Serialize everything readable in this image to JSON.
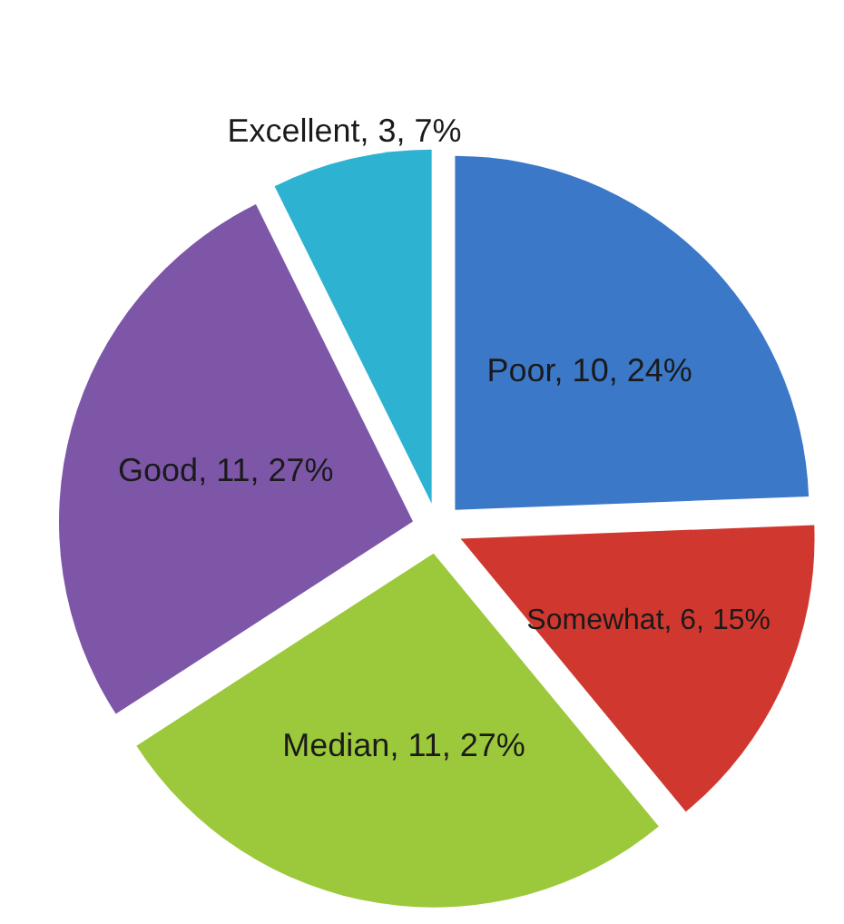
{
  "chart_data": {
    "type": "pie",
    "categories": [
      "Poor",
      "Somewhat",
      "Median",
      "Good",
      "Excellent"
    ],
    "values": [
      10,
      6,
      11,
      11,
      3
    ],
    "colors": [
      "#3c78c8",
      "#d0382f",
      "#9cc83c",
      "#7d56a8",
      "#2eb2d2"
    ],
    "value_labels": [
      "10, 24%",
      "6, 15%",
      "11, 27%",
      "11, 27%",
      "3, 7%"
    ]
  }
}
